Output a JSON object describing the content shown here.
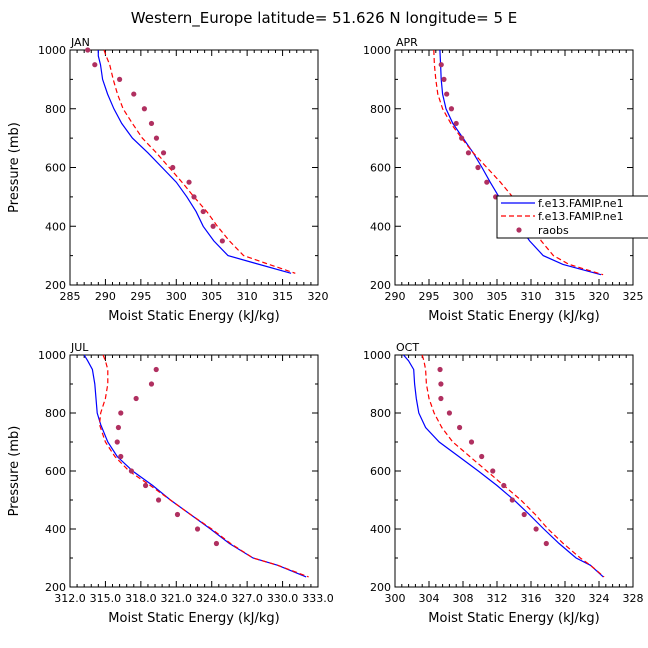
{
  "figure": {
    "title": "Western_Europe  latitude= 51.626 N longitude= 5 E"
  },
  "colors": {
    "model1": "#0000ff",
    "model2": "#ff0000",
    "obs": "#b03060"
  },
  "legend": {
    "entries": [
      {
        "label": "f.e13.FAMIP.ne1",
        "style": "solid"
      },
      {
        "label": "f.e13.FAMIP.ne1",
        "style": "dashed"
      },
      {
        "label": "raobs",
        "style": "dots"
      }
    ]
  },
  "chart_data": [
    {
      "type": "line",
      "panel": "JAN",
      "title": "JAN",
      "xlabel": "Moist Static Energy (kJ/kg)",
      "ylabel": "Pressure (mb)",
      "xlim": [
        285,
        320
      ],
      "ylim": [
        1000,
        200
      ],
      "xticks": [
        "285",
        "290",
        "295",
        "300",
        "305",
        "310",
        "315",
        "320"
      ],
      "yticks": [
        "200",
        "400",
        "600",
        "800",
        "1000"
      ],
      "series": [
        {
          "style": "solid",
          "points": [
            [
              289.0,
              1000
            ],
            [
              289.0,
              980
            ],
            [
              289.3,
              950
            ],
            [
              289.6,
              900
            ],
            [
              290.3,
              850
            ],
            [
              291.2,
              800
            ],
            [
              292.3,
              750
            ],
            [
              293.8,
              700
            ],
            [
              296.0,
              650
            ],
            [
              298.0,
              600
            ],
            [
              300.0,
              550
            ],
            [
              301.5,
              500
            ],
            [
              302.8,
              450
            ],
            [
              303.8,
              400
            ],
            [
              305.3,
              350
            ],
            [
              307.3,
              300
            ],
            [
              311.0,
              275
            ],
            [
              316.2,
              240
            ]
          ]
        },
        {
          "style": "dashed",
          "points": [
            [
              289.8,
              1000
            ],
            [
              290.1,
              980
            ],
            [
              290.6,
              950
            ],
            [
              291.1,
              900
            ],
            [
              291.7,
              850
            ],
            [
              292.5,
              800
            ],
            [
              293.8,
              750
            ],
            [
              295.2,
              700
            ],
            [
              297.2,
              650
            ],
            [
              299.0,
              600
            ],
            [
              300.8,
              550
            ],
            [
              302.5,
              500
            ],
            [
              304.3,
              450
            ],
            [
              305.8,
              400
            ],
            [
              307.5,
              350
            ],
            [
              309.5,
              300
            ],
            [
              312.5,
              275
            ],
            [
              316.8,
              240
            ]
          ]
        },
        {
          "style": "dots",
          "points": [
            [
              287.5,
              1000
            ],
            [
              288.5,
              950
            ],
            [
              292.0,
              900
            ],
            [
              294.0,
              850
            ],
            [
              295.5,
              800
            ],
            [
              296.5,
              750
            ],
            [
              297.2,
              700
            ],
            [
              298.2,
              650
            ],
            [
              299.5,
              600
            ],
            [
              301.8,
              550
            ],
            [
              302.5,
              500
            ],
            [
              303.8,
              450
            ],
            [
              305.2,
              400
            ],
            [
              306.5,
              350
            ]
          ]
        }
      ]
    },
    {
      "type": "line",
      "panel": "APR",
      "title": "APR",
      "xlabel": "Moist Static Energy (kJ/kg)",
      "ylabel": "",
      "xlim": [
        290,
        325
      ],
      "ylim": [
        1000,
        200
      ],
      "xticks": [
        "290",
        "295",
        "300",
        "305",
        "310",
        "315",
        "320",
        "325"
      ],
      "yticks": [
        "200",
        "400",
        "600",
        "800",
        "1000"
      ],
      "series": [
        {
          "style": "solid",
          "points": [
            [
              296.6,
              1000
            ],
            [
              296.7,
              950
            ],
            [
              296.8,
              900
            ],
            [
              297.0,
              850
            ],
            [
              297.5,
              800
            ],
            [
              298.5,
              750
            ],
            [
              300.0,
              700
            ],
            [
              301.5,
              650
            ],
            [
              302.8,
              600
            ],
            [
              304.0,
              550
            ],
            [
              305.3,
              500
            ],
            [
              307.0,
              450
            ],
            [
              308.3,
              400
            ],
            [
              309.8,
              350
            ],
            [
              311.8,
              300
            ],
            [
              314.7,
              270
            ],
            [
              320.3,
              235
            ]
          ]
        },
        {
          "style": "dashed",
          "points": [
            [
              295.7,
              1000
            ],
            [
              295.8,
              950
            ],
            [
              296.0,
              900
            ],
            [
              296.3,
              850
            ],
            [
              297.0,
              800
            ],
            [
              298.2,
              750
            ],
            [
              299.8,
              700
            ],
            [
              301.5,
              650
            ],
            [
              303.5,
              600
            ],
            [
              305.5,
              550
            ],
            [
              307.3,
              500
            ],
            [
              309.0,
              450
            ],
            [
              310.3,
              400
            ],
            [
              311.5,
              350
            ],
            [
              313.3,
              300
            ],
            [
              315.6,
              270
            ],
            [
              320.6,
              235
            ]
          ]
        },
        {
          "style": "dots",
          "points": [
            [
              296.8,
              950
            ],
            [
              297.2,
              900
            ],
            [
              297.6,
              850
            ],
            [
              298.3,
              800
            ],
            [
              299.0,
              750
            ],
            [
              299.8,
              700
            ],
            [
              300.8,
              650
            ],
            [
              302.2,
              600
            ],
            [
              303.5,
              550
            ],
            [
              304.8,
              500
            ],
            [
              306.0,
              450
            ],
            [
              307.8,
              400
            ]
          ]
        }
      ]
    },
    {
      "type": "line",
      "panel": "JUL",
      "title": "JUL",
      "xlabel": "Moist Static Energy (kJ/kg)",
      "ylabel": "Pressure (mb)",
      "xlim": [
        312.0,
        333.0
      ],
      "ylim": [
        1000,
        200
      ],
      "xticks": [
        "312.0",
        "315.0",
        "318.0",
        "321.0",
        "324.0",
        "327.0",
        "330.0",
        "333.0"
      ],
      "yticks": [
        "200",
        "400",
        "600",
        "800",
        "1000"
      ],
      "series": [
        {
          "style": "solid",
          "points": [
            [
              313.2,
              1000
            ],
            [
              313.5,
              980
            ],
            [
              313.9,
              950
            ],
            [
              314.1,
              900
            ],
            [
              314.2,
              850
            ],
            [
              314.3,
              800
            ],
            [
              314.6,
              760
            ],
            [
              315.2,
              700
            ],
            [
              316.0,
              650
            ],
            [
              317.3,
              600
            ],
            [
              319.0,
              550
            ],
            [
              320.5,
              500
            ],
            [
              322.2,
              450
            ],
            [
              323.9,
              400
            ],
            [
              325.5,
              350
            ],
            [
              327.5,
              300
            ],
            [
              329.6,
              275
            ],
            [
              332.0,
              235
            ]
          ]
        },
        {
          "style": "dashed",
          "points": [
            [
              314.8,
              1000
            ],
            [
              315.0,
              980
            ],
            [
              315.2,
              950
            ],
            [
              315.2,
              900
            ],
            [
              315.0,
              850
            ],
            [
              314.6,
              800
            ],
            [
              314.5,
              760
            ],
            [
              315.0,
              700
            ],
            [
              315.8,
              650
            ],
            [
              317.0,
              600
            ],
            [
              318.8,
              550
            ],
            [
              320.5,
              500
            ],
            [
              322.2,
              450
            ],
            [
              324.0,
              400
            ],
            [
              325.6,
              350
            ],
            [
              327.5,
              300
            ],
            [
              329.6,
              275
            ],
            [
              332.2,
              235
            ]
          ]
        },
        {
          "style": "dots",
          "points": [
            [
              319.3,
              950
            ],
            [
              318.9,
              900
            ],
            [
              317.6,
              850
            ],
            [
              316.3,
              800
            ],
            [
              316.1,
              750
            ],
            [
              316.0,
              700
            ],
            [
              316.3,
              650
            ],
            [
              317.2,
              600
            ],
            [
              318.4,
              550
            ],
            [
              319.5,
              500
            ],
            [
              321.1,
              450
            ],
            [
              322.8,
              400
            ],
            [
              324.4,
              350
            ]
          ]
        }
      ]
    },
    {
      "type": "line",
      "panel": "OCT",
      "title": "OCT",
      "xlabel": "Moist Static Energy (kJ/kg)",
      "ylabel": "",
      "xlim": [
        300,
        328
      ],
      "ylim": [
        1000,
        200
      ],
      "xticks": [
        "300",
        "304",
        "308",
        "312",
        "316",
        "320",
        "324",
        "328"
      ],
      "yticks": [
        "200",
        "400",
        "600",
        "800",
        "1000"
      ],
      "series": [
        {
          "style": "solid",
          "points": [
            [
              301.0,
              1000
            ],
            [
              301.6,
              980
            ],
            [
              302.2,
              950
            ],
            [
              302.3,
              900
            ],
            [
              302.5,
              850
            ],
            [
              302.8,
              800
            ],
            [
              303.6,
              750
            ],
            [
              305.2,
              700
            ],
            [
              307.5,
              650
            ],
            [
              309.8,
              600
            ],
            [
              312.0,
              550
            ],
            [
              314.0,
              500
            ],
            [
              315.8,
              450
            ],
            [
              317.5,
              400
            ],
            [
              319.3,
              350
            ],
            [
              321.3,
              300
            ],
            [
              323.0,
              275
            ],
            [
              324.5,
              235
            ]
          ]
        },
        {
          "style": "dashed",
          "points": [
            [
              303.2,
              1000
            ],
            [
              303.4,
              980
            ],
            [
              303.6,
              950
            ],
            [
              303.7,
              900
            ],
            [
              304.0,
              850
            ],
            [
              304.6,
              800
            ],
            [
              305.5,
              750
            ],
            [
              306.8,
              700
            ],
            [
              308.8,
              650
            ],
            [
              310.8,
              600
            ],
            [
              312.8,
              550
            ],
            [
              314.8,
              500
            ],
            [
              316.5,
              450
            ],
            [
              318.0,
              400
            ],
            [
              319.8,
              350
            ],
            [
              321.8,
              300
            ],
            [
              323.0,
              275
            ],
            [
              324.6,
              235
            ]
          ]
        },
        {
          "style": "dots",
          "points": [
            [
              305.3,
              950
            ],
            [
              305.4,
              900
            ],
            [
              305.4,
              850
            ],
            [
              306.4,
              800
            ],
            [
              307.6,
              750
            ],
            [
              309.0,
              700
            ],
            [
              310.2,
              650
            ],
            [
              311.5,
              600
            ],
            [
              312.8,
              550
            ],
            [
              313.8,
              500
            ],
            [
              315.2,
              450
            ],
            [
              316.6,
              400
            ],
            [
              317.8,
              350
            ]
          ]
        }
      ]
    }
  ]
}
